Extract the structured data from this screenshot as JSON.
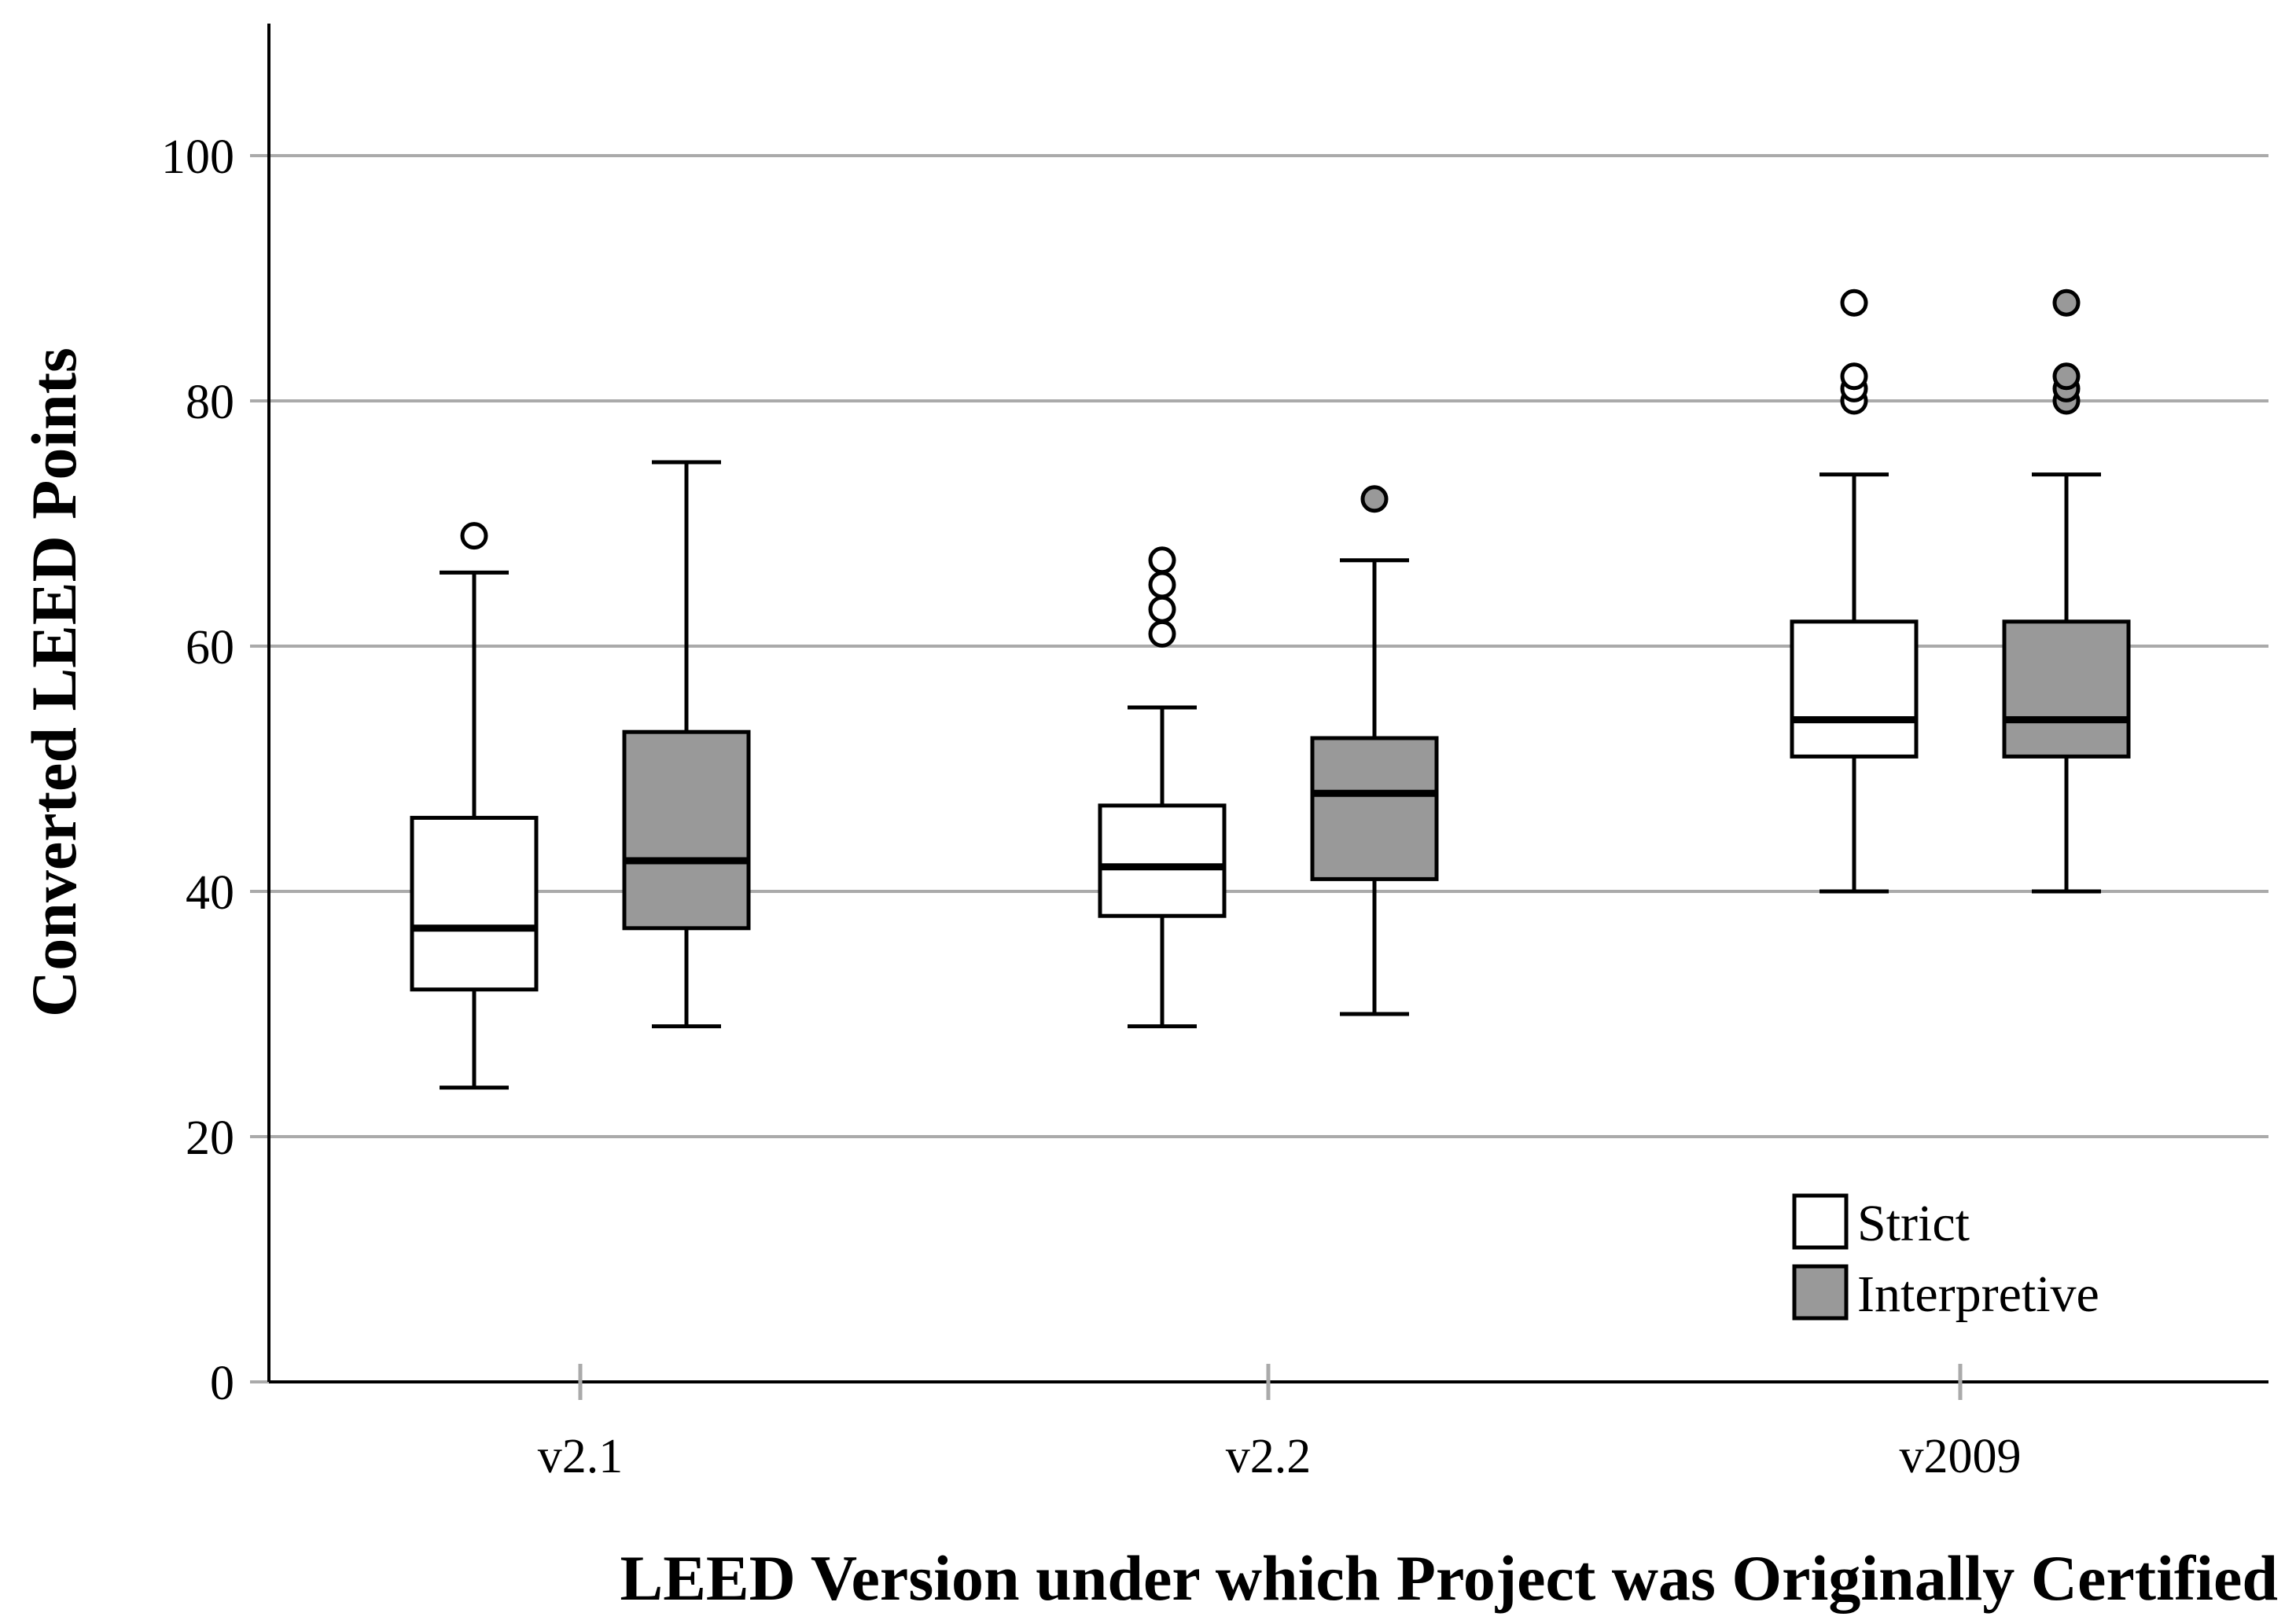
{
  "chart_data": {
    "type": "boxplot",
    "xlabel": "LEED Version under which Project was Originally Certified",
    "ylabel": "Converted LEED Points",
    "ylim": [
      0,
      110
    ],
    "yticks": [
      0,
      20,
      40,
      60,
      80,
      100
    ],
    "grid": true,
    "legend_position": "bottom-right",
    "categories": [
      "v2.1",
      "v2.2",
      "v2009"
    ],
    "series": [
      {
        "name": "Strict",
        "color": "#ffffff",
        "boxes": [
          {
            "category": "v2.1",
            "whisker_low": 24,
            "q1": 32,
            "median": 37,
            "q3": 46,
            "whisker_high": 66,
            "outliers": [
              69
            ]
          },
          {
            "category": "v2.2",
            "whisker_low": 29,
            "q1": 38,
            "median": 42,
            "q3": 47,
            "whisker_high": 55,
            "outliers": [
              61,
              63,
              65,
              67
            ]
          },
          {
            "category": "v2009",
            "whisker_low": 40,
            "q1": 51,
            "median": 54,
            "q3": 62,
            "whisker_high": 74,
            "outliers": [
              80,
              81,
              82,
              88
            ]
          }
        ]
      },
      {
        "name": "Interpretive",
        "color": "#999999",
        "boxes": [
          {
            "category": "v2.1",
            "whisker_low": 29,
            "q1": 37,
            "median": 42.5,
            "q3": 53,
            "whisker_high": 75,
            "outliers": []
          },
          {
            "category": "v2.2",
            "whisker_low": 30,
            "q1": 41,
            "median": 48,
            "q3": 52.5,
            "whisker_high": 67,
            "outliers": [
              72
            ]
          },
          {
            "category": "v2009",
            "whisker_low": 40,
            "q1": 51,
            "median": 54,
            "q3": 62,
            "whisker_high": 74,
            "outliers": [
              80,
              81,
              82,
              88
            ]
          }
        ]
      }
    ]
  }
}
